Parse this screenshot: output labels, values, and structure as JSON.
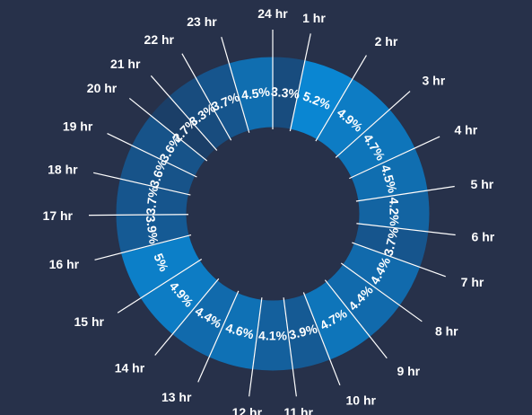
{
  "chart_data": {
    "type": "pie",
    "categories": [
      "24 hr",
      "1 hr",
      "2 hr",
      "3 hr",
      "4 hr",
      "5 hr",
      "6 hr",
      "7 hr",
      "8 hr",
      "9 hr",
      "10 hr",
      "11 hr",
      "12 hr",
      "13 hr",
      "14 hr",
      "15 hr",
      "16 hr",
      "17 hr",
      "18 hr",
      "19 hr",
      "20 hr",
      "21 hr",
      "22 hr",
      "23 hr"
    ],
    "values": [
      3.3,
      5.2,
      4.9,
      4.7,
      4.5,
      4.2,
      3.7,
      4.4,
      4.4,
      4.7,
      3.9,
      4.1,
      4.6,
      4.4,
      4.9,
      5,
      3.9,
      3.7,
      3.6,
      3.6,
      2.7,
      3.3,
      3.7,
      4.5
    ],
    "value_labels": [
      "3.3%",
      "5.2%",
      "4.9%",
      "4.7%",
      "4.5%",
      "4.2%",
      "3.7%",
      "4.4%",
      "4.4%",
      "4.7%",
      "3.9%",
      "4.1%",
      "4.6%",
      "4.4%",
      "4.9%",
      "5%",
      "3.9%",
      "3.7%",
      "3.6%",
      "3.6%",
      "2.7%",
      "3.3%",
      "3.7%",
      "4.5%"
    ],
    "donut": true,
    "colors": {
      "background": "#27314a",
      "low": "#1b3f68",
      "mid": "#155b96",
      "high": "#0a86d2"
    }
  }
}
